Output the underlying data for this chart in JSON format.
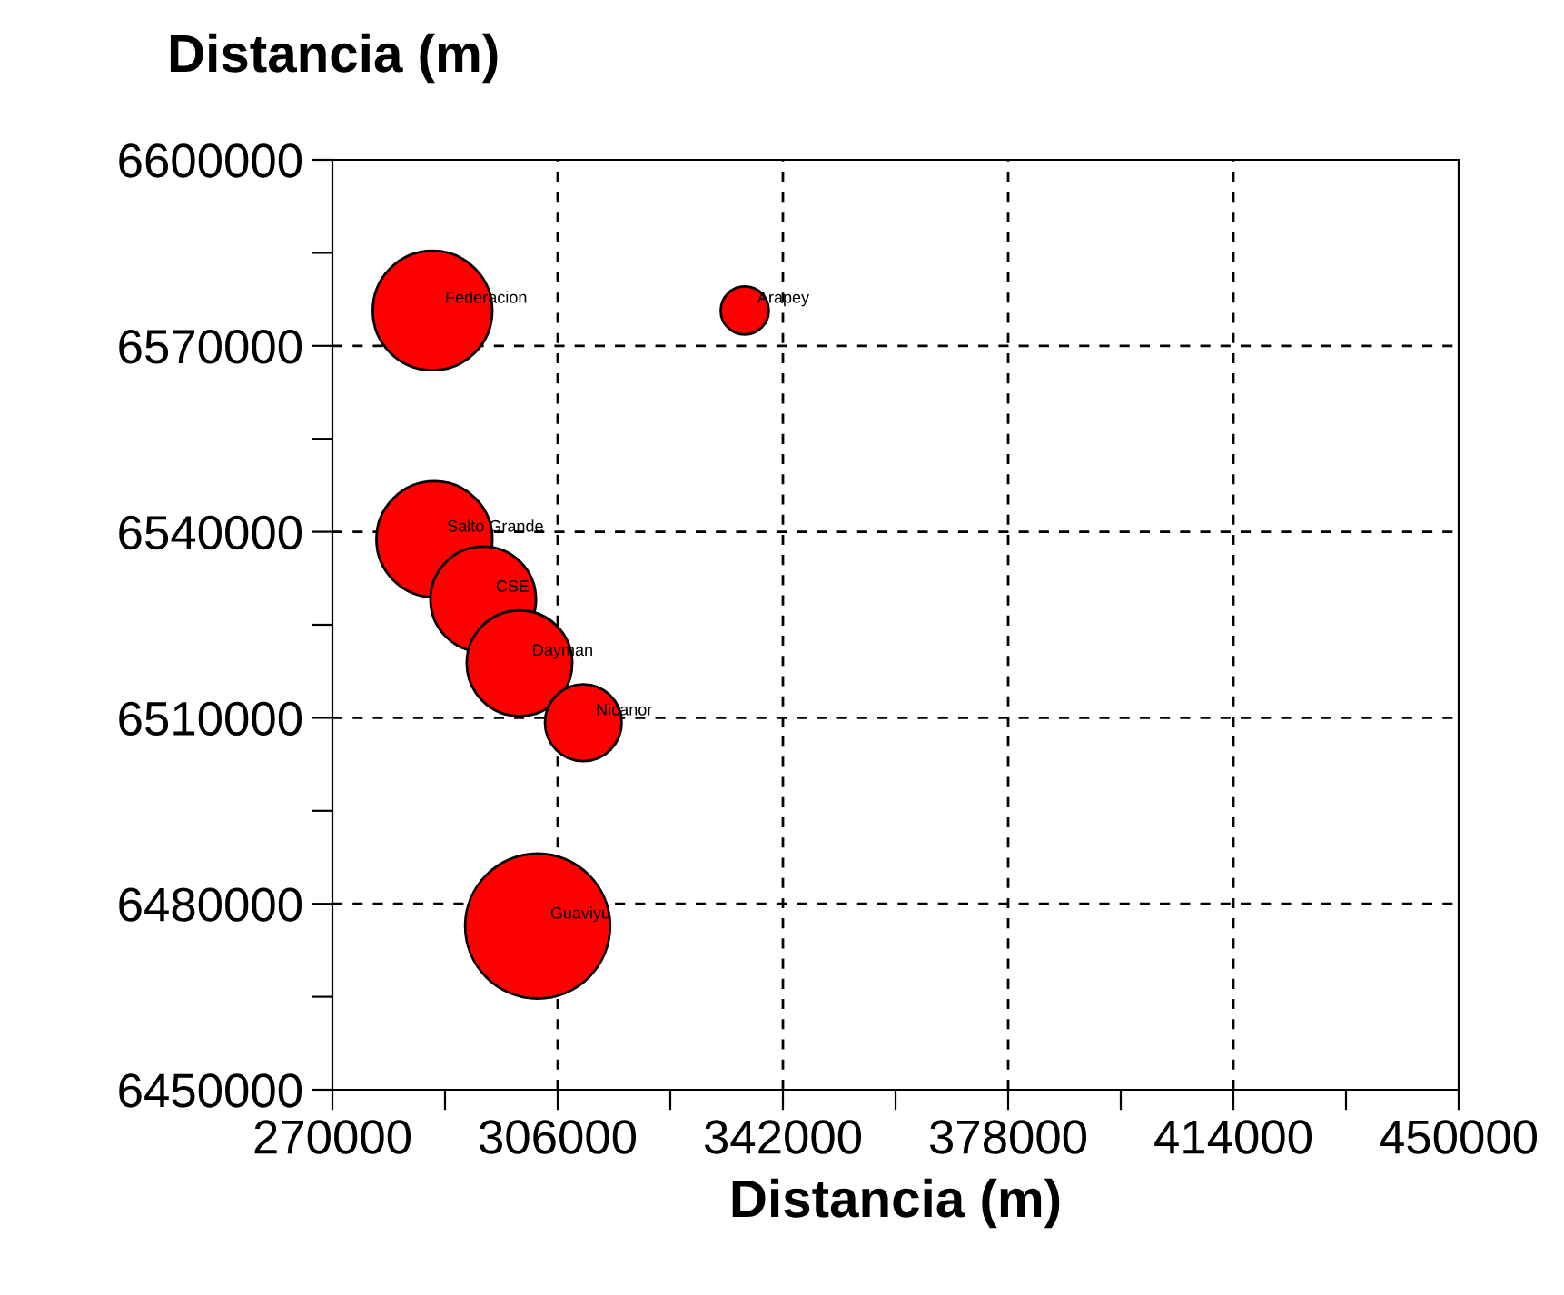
{
  "chart_data": {
    "type": "bubble",
    "xlabel": "Distancia (m)",
    "ylabel": "Distancia (m)",
    "x": [
      286000,
      335900,
      286300,
      294100,
      299900,
      310100,
      302800
    ],
    "series": [
      {
        "color": "#ff0000",
        "values": [
          6575700,
          6575700,
          6538800,
          6529100,
          6518800,
          6509200,
          6476400
        ],
        "sizes": [
          0.68,
          0.11,
          0.64,
          0.53,
          0.53,
          0.28,
          1
        ]
      }
    ],
    "annotations": [
      {
        "text": "Federacion",
        "x": 286000,
        "y": 6575700
      },
      {
        "text": "Arapey",
        "x": 335900,
        "y": 6575700
      },
      {
        "text": "Salto Grande",
        "x": 286300,
        "y": 6538800
      },
      {
        "text": "CSE",
        "x": 294100,
        "y": 6529100
      },
      {
        "text": "Dayman",
        "x": 299900,
        "y": 6518800
      },
      {
        "text": "Nicanor",
        "x": 310100,
        "y": 6509200
      },
      {
        "text": "Guaviyu",
        "x": 302800,
        "y": 6476400
      }
    ],
    "xlim": [
      270000,
      450000
    ],
    "xticks": [
      270000,
      {
        "value": 288000,
        "label": null
      },
      306000,
      {
        "value": 324000,
        "label": null
      },
      342000,
      {
        "value": 360000,
        "label": null
      },
      378000,
      {
        "value": 396000,
        "label": null
      },
      414000,
      {
        "value": 432000,
        "label": null
      },
      450000
    ],
    "ylim": [
      6450000,
      6600000
    ],
    "yticks": [
      6450000,
      {
        "value": 6465000,
        "label": null
      },
      6480000,
      {
        "value": 6495000,
        "label": null
      },
      6510000,
      {
        "value": 6525000,
        "label": null
      },
      6540000,
      {
        "value": 6555000,
        "label": null
      },
      6570000,
      {
        "value": 6585000,
        "label": null
      },
      6600000
    ],
    "grid": true
  }
}
